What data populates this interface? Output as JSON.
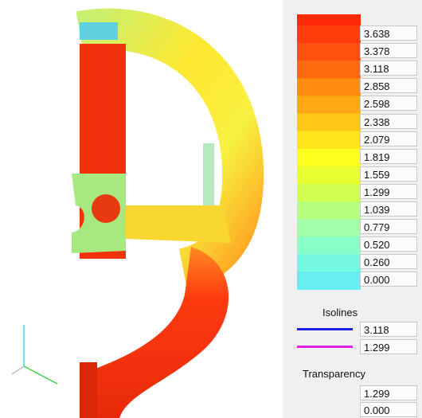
{
  "legend": {
    "levels": [
      "3.638",
      "3.378",
      "3.118",
      "2.858",
      "2.598",
      "2.338",
      "2.079",
      "1.819",
      "1.559",
      "1.299",
      "1.039",
      "0.779",
      "0.520",
      "0.260",
      "0.000"
    ]
  },
  "isolines": {
    "title": "Isolines",
    "items": [
      {
        "value": "3.118",
        "color": "#2020e0"
      },
      {
        "value": "1.299",
        "color": "#e020e0"
      }
    ]
  },
  "transparency": {
    "title": "Transparency",
    "values": [
      "1.299",
      "0.000"
    ]
  }
}
